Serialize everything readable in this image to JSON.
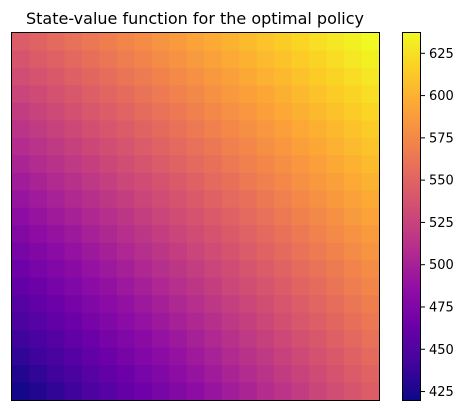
{
  "chart_data": {
    "type": "heatmap",
    "title": "State-value function for the optimal policy",
    "xlabel": "",
    "ylabel": "",
    "grid": false,
    "colormap": "plasma",
    "rows": 21,
    "cols": 21,
    "value_model": {
      "description_of_values": "value at grid cell (row 0 = top, col 0 = left)",
      "bottom_left": 423,
      "top_left": 545,
      "bottom_right": 545,
      "top_right": 637
    },
    "colorbar": {
      "min": 420,
      "max": 637,
      "ticks": [
        425,
        450,
        475,
        500,
        525,
        550,
        575,
        600,
        625
      ],
      "tick_labels": [
        "425",
        "450",
        "475",
        "500",
        "525",
        "550",
        "575",
        "600",
        "625"
      ]
    }
  }
}
